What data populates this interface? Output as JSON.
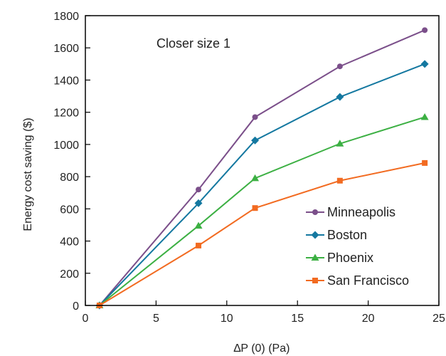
{
  "chart_data": {
    "type": "line",
    "title": "",
    "annotation": "Closer size 1",
    "xlabel": "∆P (0) (Pa)",
    "ylabel": "Energy cost saving ($)",
    "xlim": [
      0,
      25
    ],
    "ylim": [
      0,
      1800
    ],
    "xticks": [
      0,
      5,
      10,
      15,
      20,
      25
    ],
    "yticks": [
      0,
      200,
      400,
      600,
      800,
      1000,
      1200,
      1400,
      1600,
      1800
    ],
    "grid": false,
    "legend_position": "bottom-right",
    "x": [
      1,
      8,
      12,
      18,
      24
    ],
    "series": [
      {
        "name": "Minneapolis",
        "color": "#7b4f8a",
        "marker": "circle",
        "values": [
          0,
          720,
          1170,
          1485,
          1710
        ]
      },
      {
        "name": "Boston",
        "color": "#1478a0",
        "marker": "diamond",
        "values": [
          0,
          635,
          1025,
          1295,
          1500
        ]
      },
      {
        "name": "Phoenix",
        "color": "#3cb043",
        "marker": "triangle",
        "values": [
          0,
          495,
          790,
          1005,
          1170
        ]
      },
      {
        "name": "San Francisco",
        "color": "#f26b21",
        "marker": "square",
        "values": [
          0,
          372,
          605,
          775,
          885
        ]
      }
    ]
  }
}
